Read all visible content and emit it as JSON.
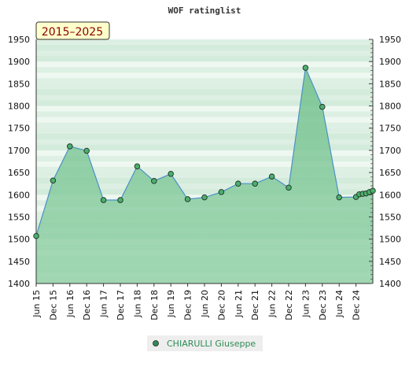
{
  "chart_data": {
    "type": "area",
    "title": "WOF ratinglist",
    "badge": "2015–2025",
    "ylim": [
      1400,
      1950
    ],
    "yticks": [
      1400,
      1450,
      1500,
      1550,
      1600,
      1650,
      1700,
      1750,
      1800,
      1850,
      1900,
      1950
    ],
    "xtick_labels": [
      "Jun 15",
      "Dec 15",
      "Jun 16",
      "Dec 16",
      "Jun 17",
      "Dec 17",
      "Jun 18",
      "Dec 18",
      "Jun 19",
      "Dec 19",
      "Jun 20",
      "Dec 20",
      "Jun 21",
      "Dec 21",
      "Jun 22",
      "Dec 22",
      "Jun 23",
      "Dec 23",
      "Jun 24",
      "Dec 24"
    ],
    "grid": true,
    "legend_placement": "bottom-center",
    "series": [
      {
        "name": "CHIARULLI Giuseppe",
        "color": "#2e8b57",
        "x": [
          0,
          1,
          2,
          3,
          4,
          5,
          6,
          7,
          8,
          9,
          10,
          11,
          12,
          13,
          14,
          15,
          16,
          17,
          18,
          19,
          19.2,
          19.4,
          19.6,
          19.8,
          20
        ],
        "values": [
          1507,
          1632,
          1709,
          1699,
          1588,
          1588,
          1664,
          1631,
          1647,
          1590,
          1594,
          1606,
          1625,
          1625,
          1641,
          1616,
          1886,
          1798,
          1594,
          1595,
          1601,
          1602,
          1603,
          1606,
          1609
        ]
      }
    ]
  }
}
